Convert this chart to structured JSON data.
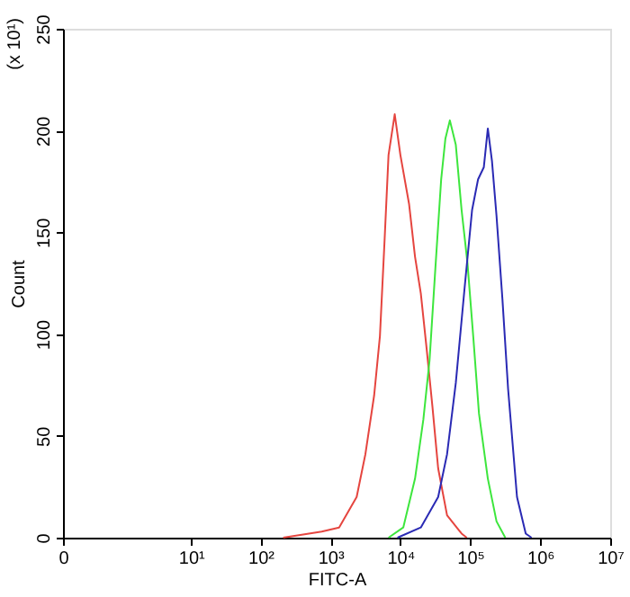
{
  "chart_data": {
    "type": "line",
    "xlabel": "FITC-A",
    "ylabel": "Count",
    "annotations": [
      "(x 10¹)"
    ],
    "log": "x",
    "grid": false,
    "xlim": [
      0,
      10000000
    ],
    "xticks": [
      0,
      {
        "value": 10,
        "label": "10¹"
      },
      {
        "value": 100,
        "label": "10²"
      },
      {
        "value": 1000,
        "label": "10³"
      },
      {
        "value": 10000,
        "label": "10⁴"
      },
      {
        "value": 100000,
        "label": "10⁵"
      },
      {
        "value": 1000000,
        "label": "10⁶"
      },
      {
        "value": 10000000,
        "label": "10⁷"
      }
    ],
    "ylim": [
      0,
      250
    ],
    "yticks": [
      0,
      50,
      100,
      150,
      200,
      250
    ],
    "series": [
      {
        "color": "#e5453f",
        "x": [
          211,
          750,
          1330,
          2370,
          3160,
          4220,
          5100,
          5960,
          6770,
          8300,
          10000,
          13300,
          16200,
          19600,
          23700,
          28800,
          34700,
          46500,
          75000,
          89000
        ],
        "values": [
          0,
          3,
          5,
          20,
          41,
          70,
          99,
          147,
          188,
          208,
          188,
          164,
          138,
          120,
          93,
          64,
          34,
          11,
          2,
          0
        ]
      },
      {
        "color": "#3de63d",
        "x": [
          6770,
          11000,
          16200,
          21300,
          26100,
          31600,
          38300,
          44000,
          51000,
          62000,
          75000,
          91000,
          110000,
          133000,
          178000,
          237000,
          316000
        ],
        "values": [
          0,
          5,
          29,
          58,
          87,
          132,
          176,
          196,
          205,
          193,
          161,
          135,
          99,
          61,
          29,
          8,
          0
        ]
      },
      {
        "color": "#2a2ab4",
        "x": [
          9100,
          19600,
          34700,
          46500,
          62000,
          83000,
          106000,
          129000,
          156000,
          178000,
          204000,
          237000,
          288000,
          347000,
          465000,
          620000,
          750000
        ],
        "values": [
          0,
          5,
          20,
          41,
          76,
          123,
          161,
          176,
          182,
          201,
          185,
          158,
          117,
          73,
          20,
          2,
          0
        ]
      }
    ]
  }
}
